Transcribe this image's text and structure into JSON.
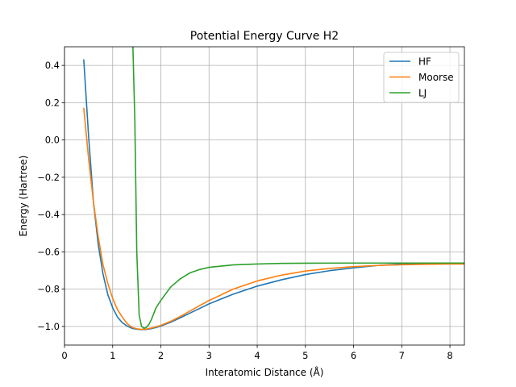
{
  "chart_data": {
    "type": "line",
    "title": "Potential Energy Curve H2",
    "xlabel": "Interatomic Distance (Å)",
    "ylabel": "Energy (Hartree)",
    "xlim": [
      0,
      8.3
    ],
    "ylim": [
      -1.1,
      0.5
    ],
    "xticks": [
      0,
      1,
      2,
      3,
      4,
      5,
      6,
      7,
      8
    ],
    "yticks": [
      -1.0,
      -0.8,
      -0.6,
      -0.4,
      -0.2,
      0.0,
      0.2,
      0.4
    ],
    "ytick_labels": [
      "−1.0",
      "−0.8",
      "−0.6",
      "−0.4",
      "−0.2",
      "0.0",
      "0.2",
      "0.4"
    ],
    "grid": true,
    "legend_position": "top-right",
    "series": [
      {
        "name": "HF",
        "color": "#1f77b4",
        "x": [
          0.4,
          0.5,
          0.6,
          0.7,
          0.8,
          0.9,
          1.0,
          1.1,
          1.2,
          1.3,
          1.4,
          1.5,
          1.6,
          1.7,
          1.8,
          1.9,
          2.0,
          2.2,
          2.4,
          2.6,
          2.8,
          3.0,
          3.5,
          4.0,
          4.5,
          5.0,
          5.5,
          6.0,
          6.5,
          7.0,
          7.5,
          8.0,
          8.3
        ],
        "y": [
          0.43,
          0.02,
          -0.33,
          -0.56,
          -0.72,
          -0.83,
          -0.9,
          -0.95,
          -0.98,
          -0.998,
          -1.01,
          -1.015,
          -1.017,
          -1.016,
          -1.012,
          -1.006,
          -0.998,
          -0.978,
          -0.954,
          -0.929,
          -0.904,
          -0.879,
          -0.827,
          -0.784,
          -0.75,
          -0.722,
          -0.701,
          -0.686,
          -0.673,
          -0.665,
          -0.662,
          -0.662,
          -0.663
        ]
      },
      {
        "name": "Moorse",
        "color": "#ff7f0e",
        "x": [
          0.4,
          0.5,
          0.6,
          0.7,
          0.8,
          0.9,
          1.0,
          1.1,
          1.2,
          1.3,
          1.4,
          1.5,
          1.6,
          1.7,
          1.8,
          1.9,
          2.0,
          2.2,
          2.4,
          2.6,
          2.8,
          3.0,
          3.5,
          4.0,
          4.5,
          5.0,
          5.5,
          6.0,
          6.5,
          7.0,
          7.5,
          8.0,
          8.3
        ],
        "y": [
          0.17,
          -0.1,
          -0.33,
          -0.52,
          -0.67,
          -0.77,
          -0.85,
          -0.91,
          -0.95,
          -0.985,
          -1.005,
          -1.013,
          -1.016,
          -1.014,
          -1.009,
          -1.002,
          -0.994,
          -0.973,
          -0.947,
          -0.918,
          -0.889,
          -0.861,
          -0.8,
          -0.756,
          -0.725,
          -0.703,
          -0.689,
          -0.679,
          -0.673,
          -0.669,
          -0.667,
          -0.665,
          -0.665
        ]
      },
      {
        "name": "LJ",
        "color": "#2ca02c",
        "x": [
          1.42,
          1.46,
          1.5,
          1.55,
          1.6,
          1.65,
          1.7,
          1.75,
          1.8,
          1.9,
          2.0,
          2.2,
          2.4,
          2.6,
          2.8,
          3.0,
          3.5,
          4.0,
          4.5,
          5.0,
          6.0,
          7.0,
          8.0,
          8.3
        ],
        "y": [
          0.5,
          0.1,
          -0.6,
          -0.94,
          -1.0,
          -1.01,
          -1.005,
          -0.99,
          -0.965,
          -0.9,
          -0.86,
          -0.79,
          -0.745,
          -0.713,
          -0.695,
          -0.683,
          -0.67,
          -0.665,
          -0.662,
          -0.661,
          -0.66,
          -0.66,
          -0.66,
          -0.66
        ]
      }
    ]
  }
}
